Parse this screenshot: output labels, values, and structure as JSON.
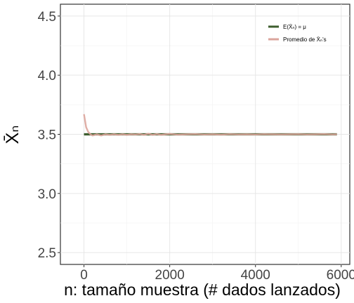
{
  "chart_data": {
    "type": "line",
    "xlabel": "n: tamaño muestra (# dados lanzados)",
    "ylabel": "X̄ₙ",
    "xlim": [
      -550,
      6200
    ],
    "ylim": [
      2.4,
      4.6
    ],
    "xticks": [
      0,
      2000,
      4000,
      6000
    ],
    "yticks": [
      2.5,
      3.0,
      3.5,
      4.0,
      4.5
    ],
    "grid": true,
    "legend_position": "top-right",
    "series": [
      {
        "name": "E(X̄ₙ) = μ",
        "color": "#3d5e2e",
        "x": [
          0,
          5900
        ],
        "y": [
          3.5,
          3.5
        ]
      },
      {
        "name": "Promedio de X̄ₙ's",
        "color": "#dba59c",
        "x": [
          0,
          50,
          100,
          150,
          200,
          300,
          400,
          500,
          600,
          700,
          800,
          900,
          1000,
          1100,
          1200,
          1300,
          1400,
          1500,
          1600,
          1700,
          1800,
          1900,
          2000,
          2200,
          2400,
          2600,
          2800,
          3000,
          3200,
          3400,
          3600,
          3800,
          4000,
          4200,
          4400,
          4600,
          4800,
          5000,
          5200,
          5400,
          5600,
          5800,
          5900
        ],
        "y": [
          3.67,
          3.56,
          3.52,
          3.5,
          3.49,
          3.5,
          3.49,
          3.5,
          3.495,
          3.5,
          3.495,
          3.5,
          3.495,
          3.5,
          3.498,
          3.502,
          3.495,
          3.505,
          3.495,
          3.502,
          3.495,
          3.5,
          3.503,
          3.497,
          3.5,
          3.502,
          3.498,
          3.5,
          3.497,
          3.501,
          3.499,
          3.5,
          3.498,
          3.501,
          3.5,
          3.499,
          3.5,
          3.501,
          3.499,
          3.5,
          3.502,
          3.499,
          3.5
        ]
      }
    ]
  }
}
